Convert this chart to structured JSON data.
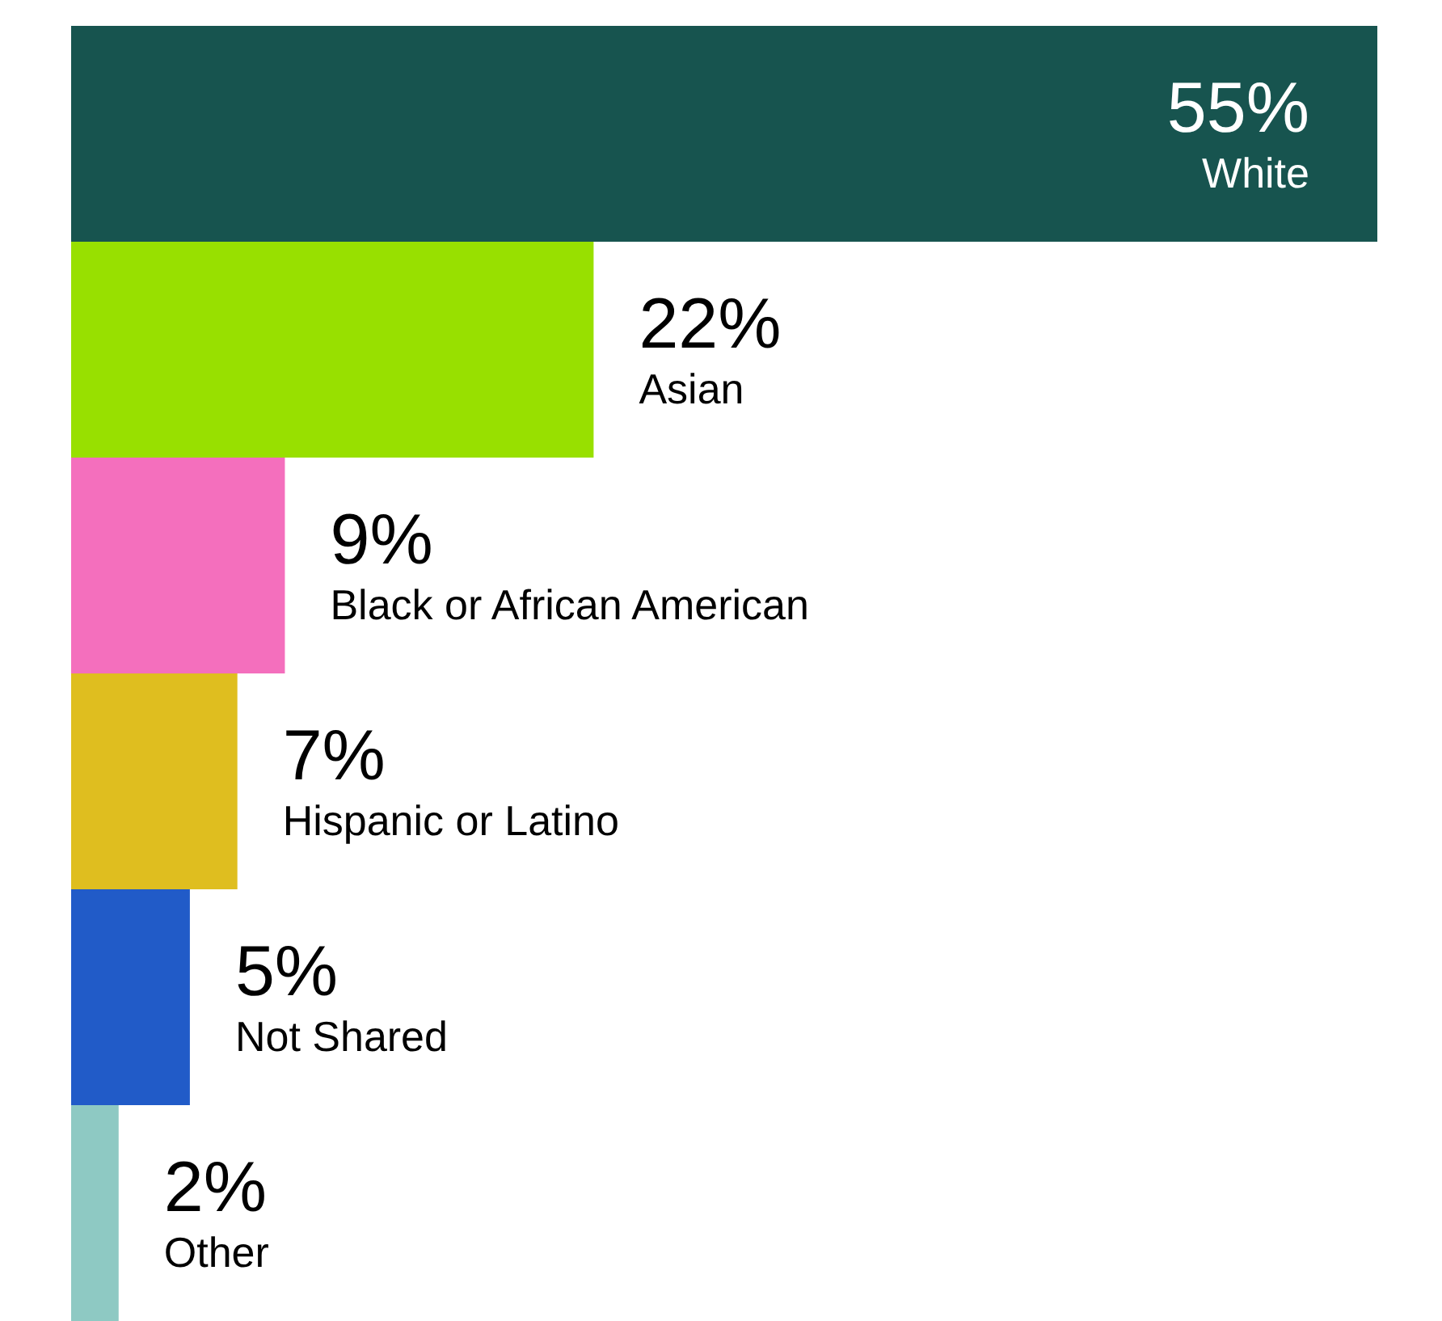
{
  "chart_data": {
    "type": "bar",
    "orientation": "horizontal",
    "categories": [
      "White",
      "Asian",
      "Black or African American",
      "Hispanic or Latino",
      "Not Shared",
      "Other"
    ],
    "values": [
      55,
      22,
      9,
      7,
      5,
      2
    ],
    "value_labels": [
      "55%",
      "22%",
      "9%",
      "7%",
      "5%",
      "2%"
    ],
    "colors": [
      "#17544f",
      "#98e000",
      "#f46fbd",
      "#dfbe1f",
      "#215bc8",
      "#8ec9c3"
    ]
  }
}
